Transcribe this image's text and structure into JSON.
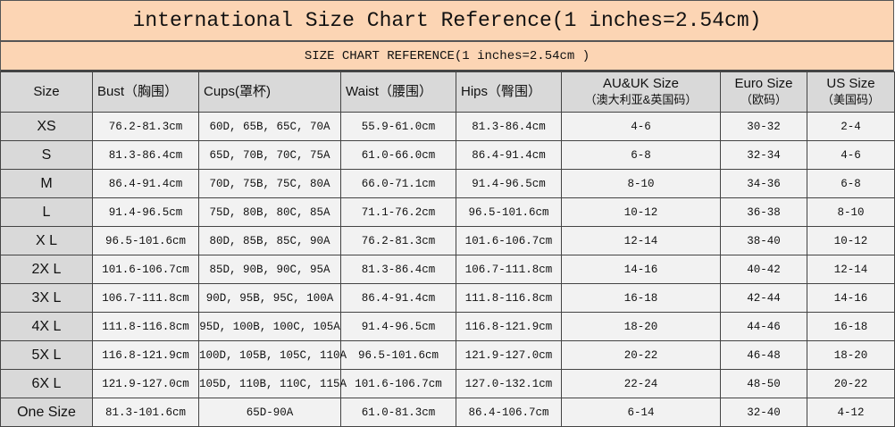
{
  "title": "international Size Chart Reference(1 inches=2.54cm)",
  "subtitle": "SIZE CHART REFERENCE(1 inches=2.54cm )",
  "colors": {
    "header_band": "#fcd5b4",
    "header_cell": "#d9d9d9",
    "cell": "#f2f2f2"
  },
  "columns": [
    {
      "label": "Size",
      "sub": ""
    },
    {
      "label": "Bust（胸围）",
      "sub": ""
    },
    {
      "label": "Cups(罩杯)",
      "sub": ""
    },
    {
      "label": "Waist（腰围）",
      "sub": ""
    },
    {
      "label": "Hips（臀围）",
      "sub": ""
    },
    {
      "label": "AU&UK Size",
      "sub": "（澳大利亚&英国码）"
    },
    {
      "label": "Euro Size",
      "sub": "（欧码）"
    },
    {
      "label": "US Size",
      "sub": "（美国码）"
    }
  ],
  "rows": [
    [
      "XS",
      "76.2-81.3cm",
      "60D, 65B, 65C, 70A",
      "55.9-61.0cm",
      "81.3-86.4cm",
      "4-6",
      "30-32",
      "2-4"
    ],
    [
      "S",
      "81.3-86.4cm",
      "65D, 70B, 70C, 75A",
      "61.0-66.0cm",
      "86.4-91.4cm",
      "6-8",
      "32-34",
      "4-6"
    ],
    [
      "M",
      "86.4-91.4cm",
      "70D, 75B, 75C, 80A",
      "66.0-71.1cm",
      "91.4-96.5cm",
      "8-10",
      "34-36",
      "6-8"
    ],
    [
      "L",
      "91.4-96.5cm",
      "75D, 80B, 80C, 85A",
      "71.1-76.2cm",
      "96.5-101.6cm",
      "10-12",
      "36-38",
      "8-10"
    ],
    [
      "X L",
      "96.5-101.6cm",
      "80D, 85B, 85C, 90A",
      "76.2-81.3cm",
      "101.6-106.7cm",
      "12-14",
      "38-40",
      "10-12"
    ],
    [
      "2X L",
      "101.6-106.7cm",
      "85D, 90B, 90C, 95A",
      "81.3-86.4cm",
      "106.7-111.8cm",
      "14-16",
      "40-42",
      "12-14"
    ],
    [
      "3X L",
      "106.7-111.8cm",
      "90D, 95B, 95C, 100A",
      "86.4-91.4cm",
      "111.8-116.8cm",
      "16-18",
      "42-44",
      "14-16"
    ],
    [
      "4X L",
      "111.8-116.8cm",
      "95D, 100B, 100C, 105A",
      "91.4-96.5cm",
      "116.8-121.9cm",
      "18-20",
      "44-46",
      "16-18"
    ],
    [
      "5X L",
      "116.8-121.9cm",
      "100D, 105B, 105C, 110A",
      "96.5-101.6cm",
      "121.9-127.0cm",
      "20-22",
      "46-48",
      "18-20"
    ],
    [
      "6X L",
      "121.9-127.0cm",
      "105D, 110B, 110C, 115A",
      "101.6-106.7cm",
      "127.0-132.1cm",
      "22-24",
      "48-50",
      "20-22"
    ],
    [
      "One Size",
      "81.3-101.6cm",
      "65D-90A",
      "61.0-81.3cm",
      "86.4-106.7cm",
      "6-14",
      "32-40",
      "4-12"
    ]
  ]
}
